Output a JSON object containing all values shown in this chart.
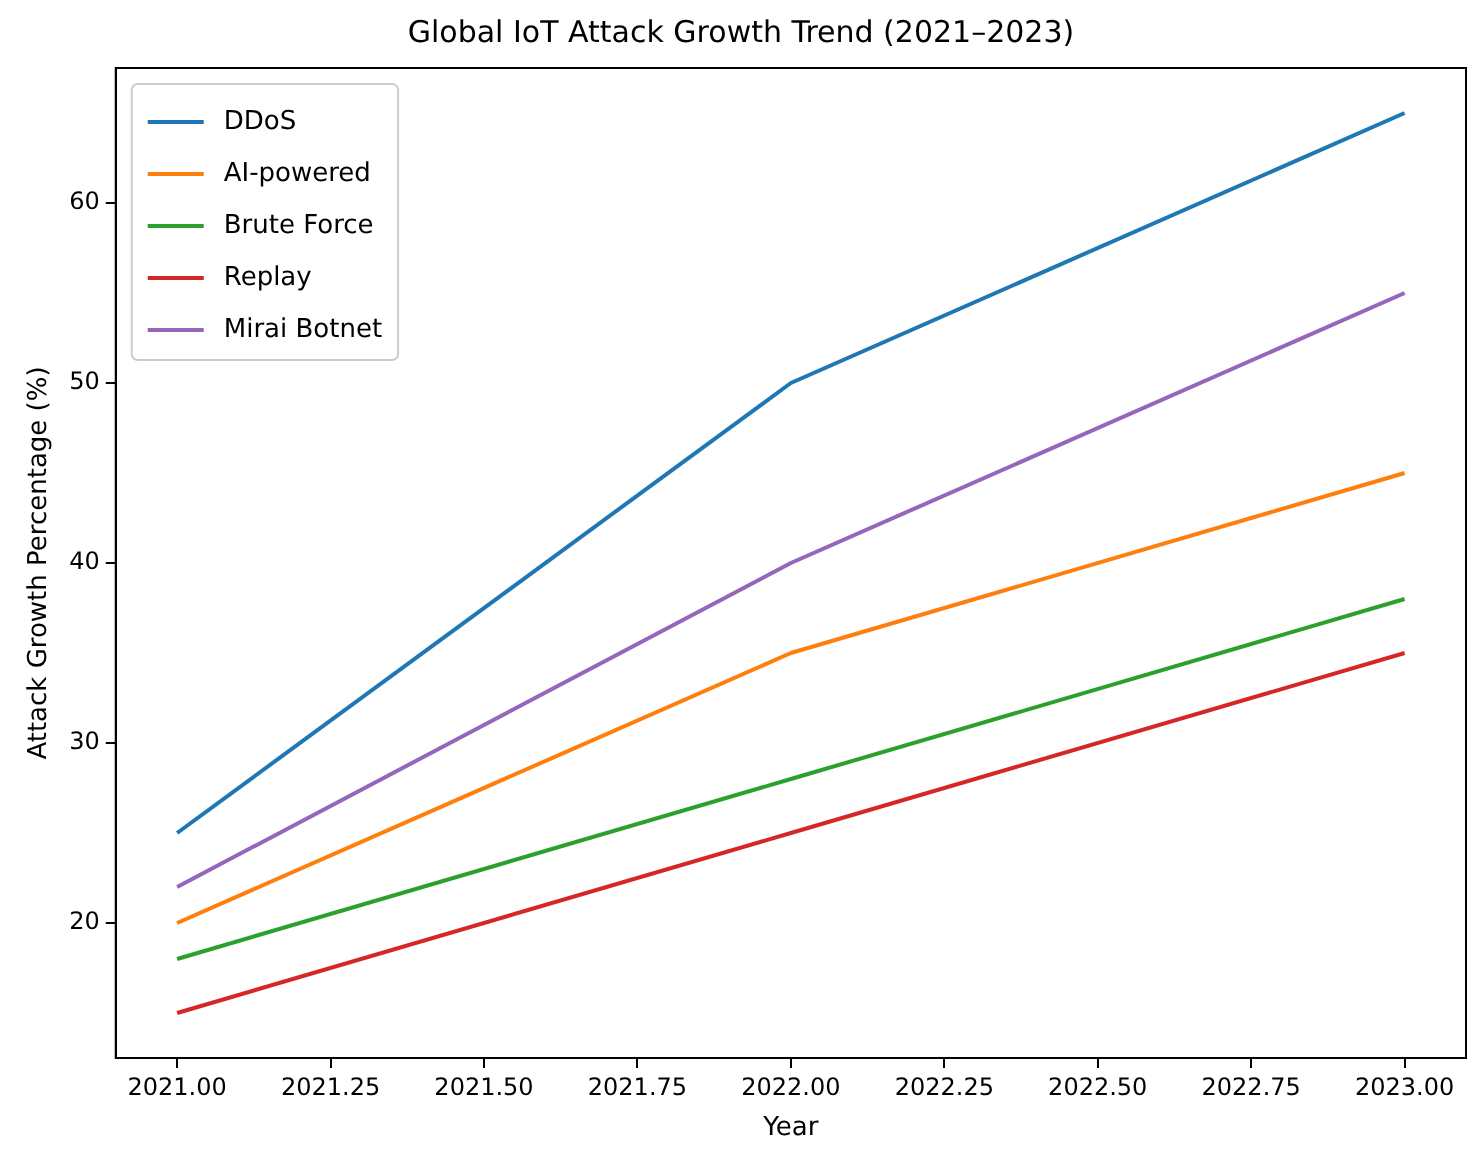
{
  "chart_data": {
    "type": "line",
    "title": "Global IoT Attack Growth Trend (2021–2023)",
    "xlabel": "Year",
    "ylabel": "Attack Growth Percentage (%)",
    "x": [
      2021,
      2022,
      2023
    ],
    "series": [
      {
        "name": "DDoS",
        "color": "#1f77b4",
        "values": [
          25,
          50,
          65
        ]
      },
      {
        "name": "AI-powered",
        "color": "#ff7f0e",
        "values": [
          20,
          35,
          45
        ]
      },
      {
        "name": "Brute Force",
        "color": "#2ca02c",
        "values": [
          18,
          28,
          38
        ]
      },
      {
        "name": "Replay",
        "color": "#d62728",
        "values": [
          15,
          25,
          35
        ]
      },
      {
        "name": "Mirai Botnet",
        "color": "#9467bd",
        "values": [
          22,
          40,
          55
        ]
      }
    ],
    "xlim": [
      2020.9,
      2023.1
    ],
    "xticks": [
      {
        "value": 2021,
        "label": "2021.00"
      },
      {
        "value": 2021.25,
        "label": "2021.25"
      },
      {
        "value": 2021.5,
        "label": "2021.50"
      },
      {
        "value": 2021.75,
        "label": "2021.75"
      },
      {
        "value": 2022,
        "label": "2022.00"
      },
      {
        "value": 2022.25,
        "label": "2022.25"
      },
      {
        "value": 2022.5,
        "label": "2022.50"
      },
      {
        "value": 2022.75,
        "label": "2022.75"
      },
      {
        "value": 2023,
        "label": "2023.00"
      }
    ],
    "ylim": [
      12.5,
      67.5
    ],
    "yticks": [
      20,
      30,
      40,
      50,
      60
    ],
    "grid": false,
    "legend": "top left",
    "marker": "none",
    "line_style": "solid"
  }
}
